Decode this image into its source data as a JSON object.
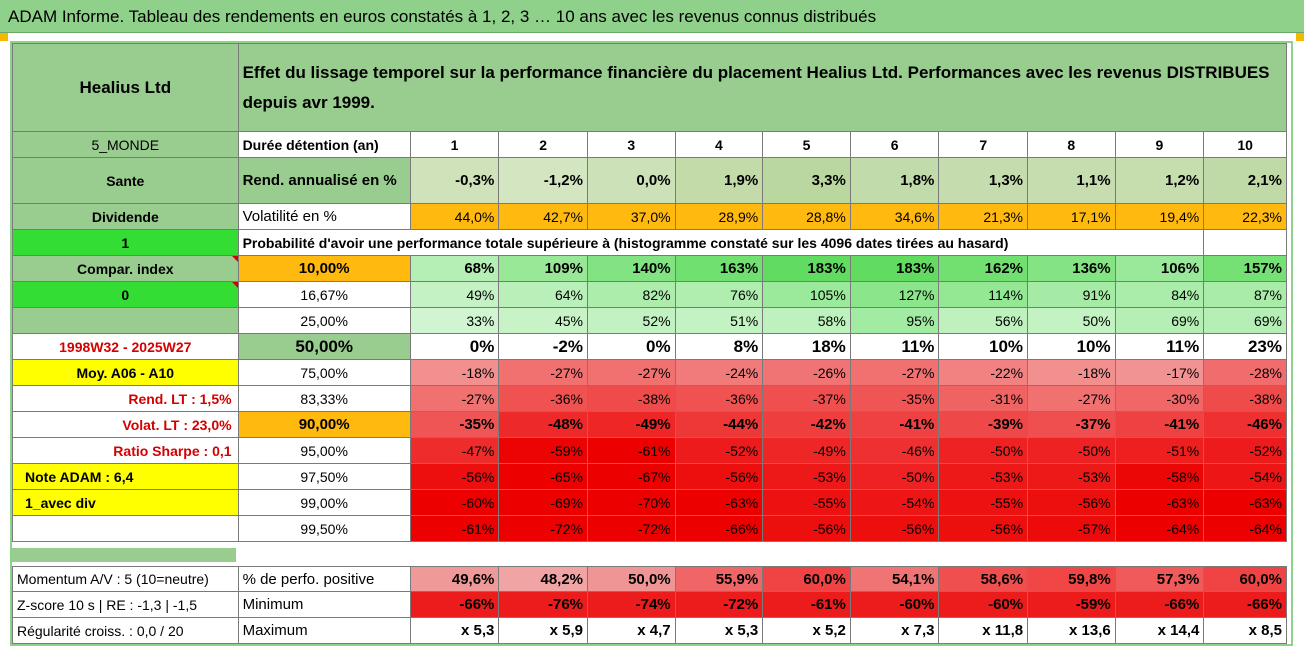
{
  "header": {
    "title": "ADAM Informe. Tableau des rendements en euros constatés à 1, 2, 3 … 10 ans avec les revenus connus distribués"
  },
  "colors": {
    "title_bg": "#8fd18b",
    "left_green": "#99cc8f",
    "bright_green": "#33dd33",
    "yellow": "#ffff00",
    "orange": "#ffb90f",
    "red_text": "#d40000"
  },
  "info": {
    "company": "Healius Ltd",
    "description": "Effet du lissage temporel sur la performance financière du placement Healius Ltd. Performances avec les revenus DISTRIBUES depuis avr 1999.",
    "region": "5_MONDE",
    "sector": "Sante",
    "dividend_label": "Dividende",
    "one_value": "1",
    "compar_index": "Compar. index",
    "zero_value": "0",
    "period": "1998W32 - 2025W27",
    "moy_label": "Moy. A06 - A10",
    "rend_lt": "Rend. LT :   1,5%",
    "volat_lt": "Volat. LT :   23,0%",
    "ratio_sharpe": "Ratio Sharpe :   0,1",
    "note_adam": "Note ADAM : 6,4",
    "avec_div": "1_avec div"
  },
  "table": {
    "years": [
      "1",
      "2",
      "3",
      "4",
      "5",
      "6",
      "7",
      "8",
      "9",
      "10"
    ],
    "row_labels": {
      "duree": "Durée détention (an)",
      "rend": "Rend. annualisé en %",
      "vol": "Volatilité en %"
    },
    "rend": [
      "-0,3%",
      "-1,2%",
      "0,0%",
      "1,9%",
      "3,3%",
      "1,8%",
      "1,3%",
      "1,1%",
      "1,2%",
      "2,1%"
    ],
    "vol": [
      "44,0%",
      "42,7%",
      "37,0%",
      "28,9%",
      "28,8%",
      "34,6%",
      "21,3%",
      "17,1%",
      "19,4%",
      "22,3%"
    ],
    "prob_heading": "Probabilité d'avoir une performance totale supérieure à (histogramme constaté sur les 4096 dates tirées au hasard)",
    "percentiles": [
      {
        "p": "10,00%",
        "vals": [
          "68%",
          "109%",
          "140%",
          "163%",
          "183%",
          "183%",
          "162%",
          "136%",
          "106%",
          "157%"
        ]
      },
      {
        "p": "16,67%",
        "vals": [
          "49%",
          "64%",
          "82%",
          "76%",
          "105%",
          "127%",
          "114%",
          "91%",
          "84%",
          "87%"
        ]
      },
      {
        "p": "25,00%",
        "vals": [
          "33%",
          "45%",
          "52%",
          "51%",
          "58%",
          "95%",
          "56%",
          "50%",
          "69%",
          "69%"
        ]
      },
      {
        "p": "50,00%",
        "vals": [
          "0%",
          "-2%",
          "0%",
          "8%",
          "18%",
          "11%",
          "10%",
          "10%",
          "11%",
          "23%"
        ]
      },
      {
        "p": "75,00%",
        "vals": [
          "-18%",
          "-27%",
          "-27%",
          "-24%",
          "-26%",
          "-27%",
          "-22%",
          "-18%",
          "-17%",
          "-28%"
        ]
      },
      {
        "p": "83,33%",
        "vals": [
          "-27%",
          "-36%",
          "-38%",
          "-36%",
          "-37%",
          "-35%",
          "-31%",
          "-27%",
          "-30%",
          "-38%"
        ]
      },
      {
        "p": "90,00%",
        "vals": [
          "-35%",
          "-48%",
          "-49%",
          "-44%",
          "-42%",
          "-41%",
          "-39%",
          "-37%",
          "-41%",
          "-46%"
        ]
      },
      {
        "p": "95,00%",
        "vals": [
          "-47%",
          "-59%",
          "-61%",
          "-52%",
          "-49%",
          "-46%",
          "-50%",
          "-50%",
          "-51%",
          "-52%"
        ]
      },
      {
        "p": "97,50%",
        "vals": [
          "-56%",
          "-65%",
          "-67%",
          "-56%",
          "-53%",
          "-50%",
          "-53%",
          "-53%",
          "-58%",
          "-54%"
        ]
      },
      {
        "p": "99,00%",
        "vals": [
          "-60%",
          "-69%",
          "-70%",
          "-63%",
          "-55%",
          "-54%",
          "-55%",
          "-56%",
          "-63%",
          "-63%"
        ]
      },
      {
        "p": "99,50%",
        "vals": [
          "-61%",
          "-72%",
          "-72%",
          "-66%",
          "-56%",
          "-56%",
          "-56%",
          "-57%",
          "-64%",
          "-64%"
        ]
      }
    ]
  },
  "bottom": {
    "momentum": "Momentum A/V : 5 (10=neutre)",
    "zscore": "Z-score 10 s | RE : -1,3 | -1,5",
    "regularite": "Régularité croiss. : 0,0 / 20",
    "pct_label": "% de perfo. positive",
    "min_label": "Minimum",
    "max_label": "Maximum",
    "pct": [
      "49,6%",
      "48,2%",
      "50,0%",
      "55,9%",
      "60,0%",
      "54,1%",
      "58,6%",
      "59,8%",
      "57,3%",
      "60,0%"
    ],
    "min": [
      "-66%",
      "-76%",
      "-74%",
      "-72%",
      "-61%",
      "-60%",
      "-60%",
      "-59%",
      "-66%",
      "-66%"
    ],
    "max": [
      "x 5,3",
      "x 5,9",
      "x 4,7",
      "x 5,3",
      "x 5,2",
      "x 7,3",
      "x 11,8",
      "x 13,6",
      "x 14,4",
      "x 8,5"
    ]
  }
}
